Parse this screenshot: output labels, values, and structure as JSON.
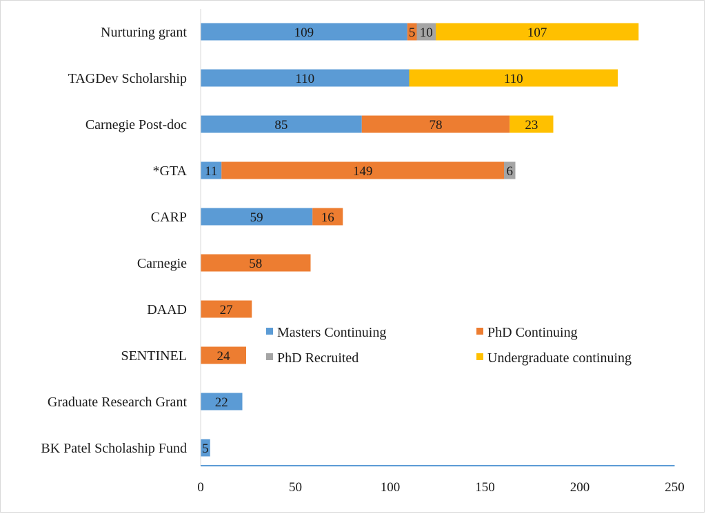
{
  "chart_data": {
    "type": "bar",
    "orientation": "horizontal",
    "stacked": true,
    "title": "",
    "xlabel": "",
    "ylabel": "",
    "xlim": [
      0,
      250
    ],
    "x_ticks": [
      "0",
      "50",
      "100",
      "150",
      "200",
      "250"
    ],
    "grid": false,
    "legend_position": "inside-lower-right",
    "categories": [
      "Nurturing grant",
      "TAGDev Scholarship",
      "Carnegie Post-doc",
      "*GTA",
      "CARP",
      "Carnegie",
      "DAAD",
      "SENTINEL",
      "Graduate Research Grant",
      "BK Patel Scholaship Fund"
    ],
    "series": [
      {
        "name": "Masters Continuing",
        "color": "#5B9BD5",
        "values": [
          109,
          110,
          85,
          11,
          59,
          0,
          0,
          0,
          22,
          5
        ]
      },
      {
        "name": "PhD Continuing",
        "color": "#ED7D31",
        "values": [
          5,
          0,
          78,
          149,
          16,
          58,
          27,
          24,
          0,
          0
        ]
      },
      {
        "name": "PhD Recruited",
        "color": "#A5A5A5",
        "values": [
          10,
          0,
          0,
          6,
          0,
          0,
          0,
          0,
          0,
          0
        ]
      },
      {
        "name": "Undergraduate continuing",
        "color": "#FFC000",
        "values": [
          107,
          110,
          23,
          0,
          0,
          0,
          0,
          0,
          0,
          0
        ]
      }
    ],
    "axis_color": "#5B9BD5"
  }
}
